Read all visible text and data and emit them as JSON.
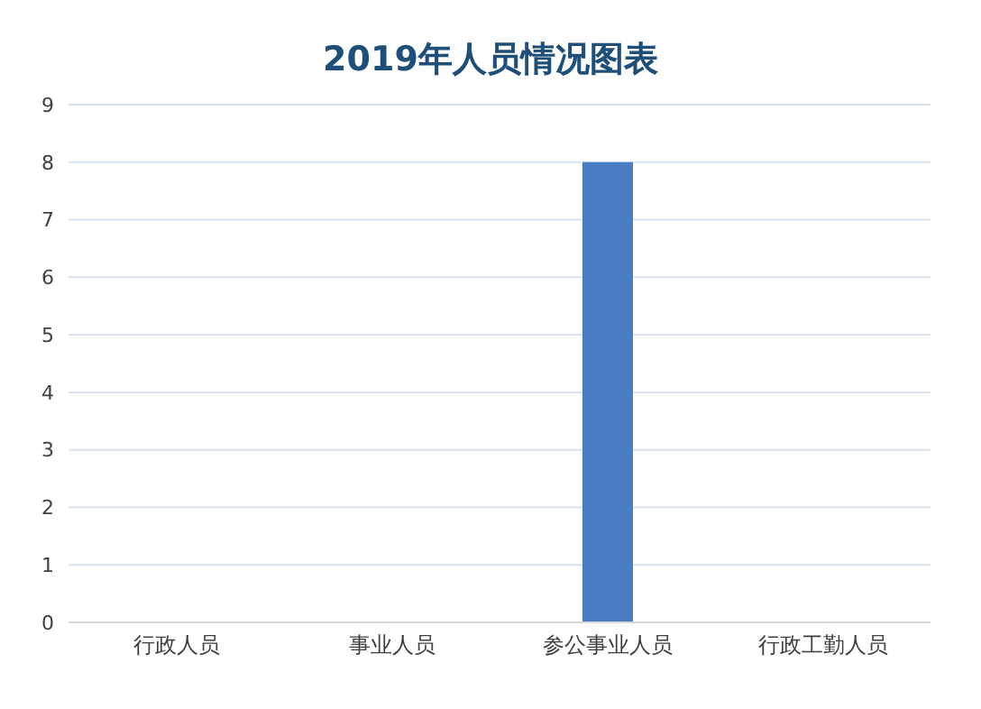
{
  "chart_data": {
    "type": "bar",
    "title": "2019年人员情况图表",
    "categories": [
      "行政人员",
      "事业人员",
      "参公事业人员",
      "行政工勤人员"
    ],
    "values": [
      0,
      0,
      8,
      0
    ],
    "color": "#4a7ec4",
    "ylim": [
      0,
      9
    ],
    "yticks": [
      0,
      1,
      2,
      3,
      4,
      5,
      6,
      7,
      8,
      9
    ],
    "grid": "y"
  }
}
